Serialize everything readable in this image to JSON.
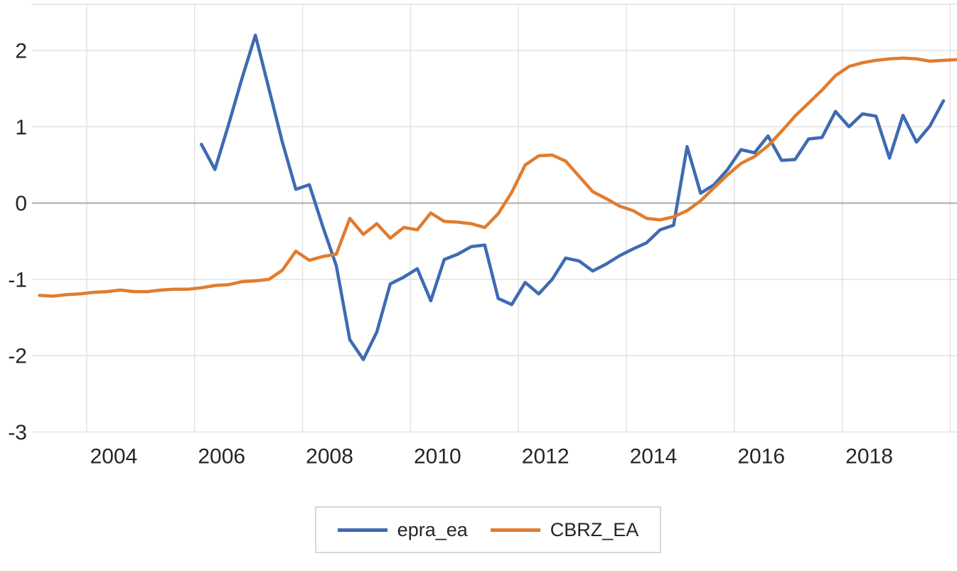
{
  "chart_data": {
    "type": "line",
    "title": "",
    "xlabel": "",
    "ylabel": "",
    "x_unit": "year (quarterly observations)",
    "xlim": [
      2002.4,
      2019.8
    ],
    "ylim": [
      -3,
      2.6
    ],
    "grid": true,
    "legend_position": "bottom-center",
    "colors": {
      "gridline": "#e2e2e2",
      "zero_line": "#acacac",
      "tick_text": "#262626",
      "legend_border": "#d9d9d9",
      "epra_ea": "#3e6bb2",
      "CBRZ_EA": "#e07c30"
    },
    "y_axis": {
      "ticks": [
        2,
        1,
        0,
        -1,
        -2,
        -3
      ]
    },
    "x_axis": {
      "gridline_ts": [
        2003.5,
        2005.5,
        2007.5,
        2009.5,
        2011.5,
        2013.5,
        2015.5,
        2017.5,
        2019.5
      ],
      "tick_labels": [
        "2004",
        "2006",
        "2008",
        "2010",
        "2012",
        "2014",
        "2016",
        "2018"
      ],
      "tick_label_ts": [
        2004,
        2006,
        2008,
        2010,
        2012,
        2014,
        2016,
        2018
      ]
    },
    "series": [
      {
        "name": "epra_ea",
        "color": "#3e6bb2",
        "x": [
          2005.625,
          2005.875,
          2006.125,
          2006.375,
          2006.625,
          2006.875,
          2007.125,
          2007.375,
          2007.625,
          2007.875,
          2008.125,
          2008.375,
          2008.625,
          2008.875,
          2009.125,
          2009.375,
          2009.625,
          2009.875,
          2010.125,
          2010.375,
          2010.625,
          2010.875,
          2011.125,
          2011.375,
          2011.625,
          2011.875,
          2012.125,
          2012.375,
          2012.625,
          2012.875,
          2013.125,
          2013.375,
          2013.625,
          2013.875,
          2014.125,
          2014.375,
          2014.625,
          2014.875,
          2015.125,
          2015.375,
          2015.625,
          2015.875,
          2016.125,
          2016.375,
          2016.625,
          2016.875,
          2017.125,
          2017.375,
          2017.625,
          2017.875,
          2018.125,
          2018.375,
          2018.625,
          2018.875,
          2019.125,
          2019.375
        ],
        "values": [
          0.77,
          0.44,
          1.02,
          1.63,
          2.2,
          1.5,
          0.8,
          0.18,
          0.24,
          -0.31,
          -0.82,
          -1.79,
          -2.05,
          -1.69,
          -1.06,
          -0.97,
          -0.86,
          -1.28,
          -0.74,
          -0.67,
          -0.57,
          -0.55,
          -1.25,
          -1.33,
          -1.04,
          -1.19,
          -1.0,
          -0.72,
          -0.76,
          -0.89,
          -0.8,
          -0.69,
          -0.6,
          -0.52,
          -0.35,
          -0.29,
          0.74,
          0.13,
          0.24,
          0.44,
          0.7,
          0.66,
          0.88,
          0.56,
          0.57,
          0.84,
          0.86,
          1.2,
          1.0,
          1.17,
          1.14,
          0.59,
          1.15,
          0.8,
          1.01,
          1.34
        ]
      },
      {
        "name": "CBRZ_EA",
        "color": "#e07c30",
        "x": [
          2002.625,
          2002.875,
          2003.125,
          2003.375,
          2003.625,
          2003.875,
          2004.125,
          2004.375,
          2004.625,
          2004.875,
          2005.125,
          2005.375,
          2005.625,
          2005.875,
          2006.125,
          2006.375,
          2006.625,
          2006.875,
          2007.125,
          2007.375,
          2007.625,
          2007.875,
          2008.125,
          2008.375,
          2008.625,
          2008.875,
          2009.125,
          2009.375,
          2009.625,
          2009.875,
          2010.125,
          2010.375,
          2010.625,
          2010.875,
          2011.125,
          2011.375,
          2011.625,
          2011.875,
          2012.125,
          2012.375,
          2012.625,
          2012.875,
          2013.125,
          2013.375,
          2013.625,
          2013.875,
          2014.125,
          2014.375,
          2014.625,
          2014.875,
          2015.125,
          2015.375,
          2015.625,
          2015.875,
          2016.125,
          2016.375,
          2016.625,
          2016.875,
          2017.125,
          2017.375,
          2017.625,
          2017.875,
          2018.125,
          2018.375,
          2018.625,
          2018.875,
          2019.125,
          2019.375,
          2019.625
        ],
        "values": [
          -1.21,
          -1.22,
          -1.2,
          -1.19,
          -1.17,
          -1.16,
          -1.14,
          -1.16,
          -1.16,
          -1.14,
          -1.13,
          -1.13,
          -1.11,
          -1.08,
          -1.07,
          -1.03,
          -1.02,
          -1.0,
          -0.88,
          -0.63,
          -0.75,
          -0.7,
          -0.67,
          -0.2,
          -0.41,
          -0.27,
          -0.46,
          -0.32,
          -0.35,
          -0.13,
          -0.24,
          -0.25,
          -0.27,
          -0.32,
          -0.14,
          0.14,
          0.5,
          0.62,
          0.63,
          0.55,
          0.35,
          0.15,
          0.06,
          -0.04,
          -0.1,
          -0.2,
          -0.22,
          -0.18,
          -0.1,
          0.03,
          0.2,
          0.37,
          0.52,
          0.61,
          0.75,
          0.94,
          1.14,
          1.31,
          1.48,
          1.67,
          1.79,
          1.84,
          1.87,
          1.89,
          1.9,
          1.89,
          1.86,
          1.87,
          1.88
        ]
      }
    ]
  },
  "legend": {
    "items": [
      {
        "label": "epra_ea",
        "color": "#3e6bb2"
      },
      {
        "label": "CBRZ_EA",
        "color": "#e07c30"
      }
    ]
  }
}
